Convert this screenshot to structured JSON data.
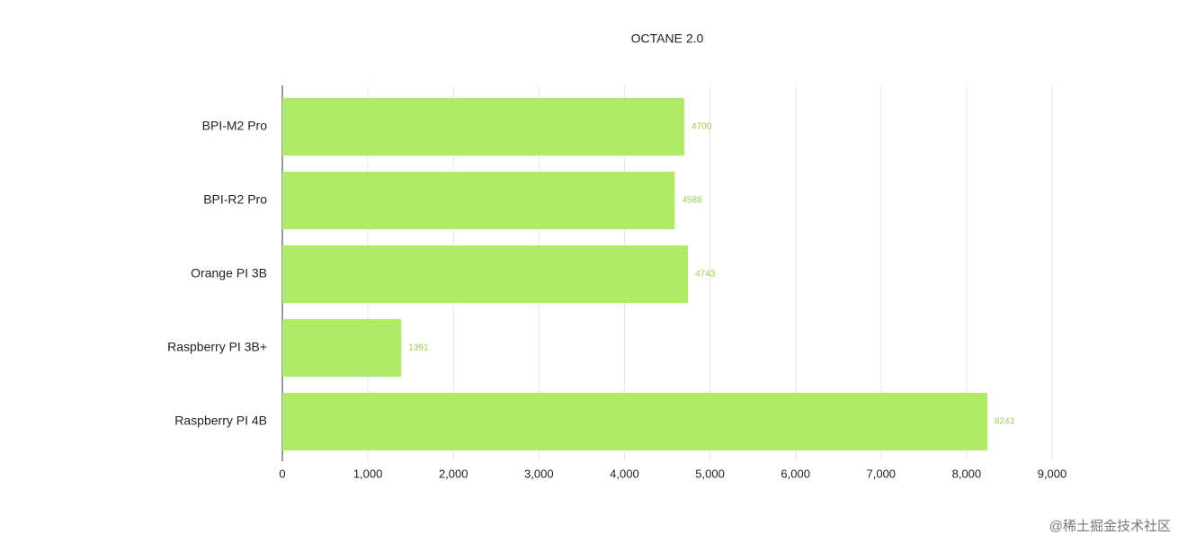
{
  "chart_data": {
    "type": "barh",
    "title": "OCTANE 2.0",
    "categories": [
      "BPI-M2 Pro",
      "BPI-R2 Pro",
      "Orange PI 3B",
      "Raspberry PI 3B+",
      "Raspberry PI 4B"
    ],
    "values": [
      4700,
      4588,
      4743,
      1391,
      8243
    ],
    "color": "#b0eb68",
    "label_color": "#9acd52",
    "xlim": [
      0,
      9000
    ],
    "xticks": [
      0,
      {
        "value": 1000,
        "label": "1,000"
      },
      {
        "value": 2000,
        "label": "2,000"
      },
      {
        "value": 3000,
        "label": "3,000"
      },
      {
        "value": 4000,
        "label": "4,000"
      },
      {
        "value": 5000,
        "label": "5,000"
      },
      {
        "value": 6000,
        "label": "6,000"
      },
      {
        "value": 7000,
        "label": "7,000"
      },
      {
        "value": 8000,
        "label": "8,000"
      },
      {
        "value": 9000,
        "label": "9,000"
      }
    ],
    "grid": true
  },
  "watermark": "@稀土掘金技术社区"
}
